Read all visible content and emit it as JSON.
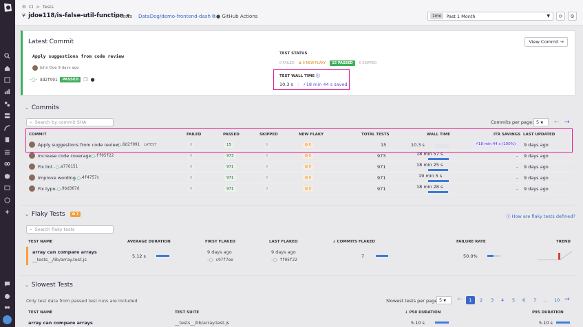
{
  "breadcrumb": {
    "item1": "CI",
    "sep": ">",
    "item2": "Tests"
  },
  "branch": "jdoe118/is-false-util-function",
  "service": "ui-tests",
  "repo": "DataDog/demo-frontend-dash",
  "provider": "GitHub Actions",
  "time_range": {
    "pill": "1mo",
    "label": "Past 1 Month"
  },
  "latest_commit": {
    "section_title": "Latest Commit",
    "view_button": "View Commit",
    "message": "Apply suggestions from code review",
    "author_line": "John Doe 9 days ago",
    "sha": "8d2f991",
    "status": "PASSED",
    "test_status_label": "TEST STATUS",
    "failed": "0 FAILED",
    "new_flaky": "0 NEW FLAKY",
    "passed": "15 PASSED",
    "skipped": "0 SKIPPED",
    "wall_time_label": "TEST WALL TIME",
    "wall_time": "10.3 s",
    "saved": "18 min 44 s saved"
  },
  "commits": {
    "section_title": "Commits",
    "search_placeholder": "Search by commit SHA",
    "per_page_label": "Commits per page:",
    "per_page": "5",
    "headers": [
      "COMMIT",
      "FAILED",
      "PASSED",
      "SKIPPED",
      "NEW FLAKY",
      "TOTAL TESTS",
      "WALL TIME",
      "ITR SAVINGS",
      "LAST UPDATED"
    ],
    "rows": [
      {
        "msg": "Apply suggestions from code review",
        "sha": "8d2f991",
        "tag": "LATEST",
        "failed": "0",
        "passed": "15",
        "skipped": "0",
        "flaky": "0",
        "total": "15",
        "wall": "10.3 s",
        "itr": "18 min 44 s (100%)",
        "updated": "9 days ago"
      },
      {
        "msg": "Increase code coverage",
        "sha": "ff05f22",
        "tag": "",
        "failed": "0",
        "passed": "973",
        "skipped": "0",
        "flaky": "0",
        "total": "973",
        "wall": "18 min 57 s",
        "itr": "-",
        "updated": "9 days ago"
      },
      {
        "msg": "Fix lint",
        "sha": "a776151",
        "tag": "",
        "failed": "0",
        "passed": "971",
        "skipped": "0",
        "flaky": "0",
        "total": "971",
        "wall": "18 min 25 s",
        "itr": "-",
        "updated": "9 days ago"
      },
      {
        "msg": "Improve wording",
        "sha": "4f4757c",
        "tag": "",
        "failed": "0",
        "passed": "971",
        "skipped": "0",
        "flaky": "0",
        "total": "971",
        "wall": "19 min 5 s",
        "itr": "-",
        "updated": "9 days ago"
      },
      {
        "msg": "Fix typo",
        "sha": "9bd367d",
        "tag": "",
        "failed": "0",
        "passed": "971",
        "skipped": "0",
        "flaky": "0",
        "total": "971",
        "wall": "18 min 28 s",
        "itr": "-",
        "updated": "9 days ago"
      }
    ]
  },
  "flaky": {
    "section_title": "Flaky Tests",
    "count": "1",
    "help_link": "How are flaky tests defined?",
    "search_placeholder": "Search flaky tests",
    "headers": [
      "TEST NAME",
      "AVERAGE DURATION",
      "FIRST FLAKED",
      "LAST FLAKED",
      "COMMITS FLAKED",
      "FAILURE RATE",
      "TREND"
    ],
    "row": {
      "name": "array can compare arrays",
      "path": "__tests__/lib/array.test.js",
      "avg": "5.12 s",
      "first_when": "9 days ago",
      "first_sha": "c97f7ee",
      "last_when": "9 days ago",
      "last_sha": "ff05f22",
      "commits": "7",
      "rate": "50.0%"
    }
  },
  "slowest": {
    "section_title": "Slowest Tests",
    "note": "Only test data from passed test runs are included",
    "per_page_label": "Slowest tests per page:",
    "per_page": "5",
    "pages": [
      "1",
      "2",
      "3",
      "4",
      "5",
      "6",
      "7",
      "...",
      "10"
    ],
    "headers": [
      "TEST NAME",
      "TEST SUITE",
      "P50 DURATION",
      "P95 DURATION"
    ],
    "row": {
      "name": "array can compare arrays",
      "suite": "__tests__/lib/array.test.js",
      "p50": "5.10 s",
      "p95": "5.10 s"
    }
  },
  "colors": {
    "accent": "#3fae5c",
    "highlight": "#e0228f",
    "link": "#3a67c9",
    "sidebar": "#2c2433"
  }
}
